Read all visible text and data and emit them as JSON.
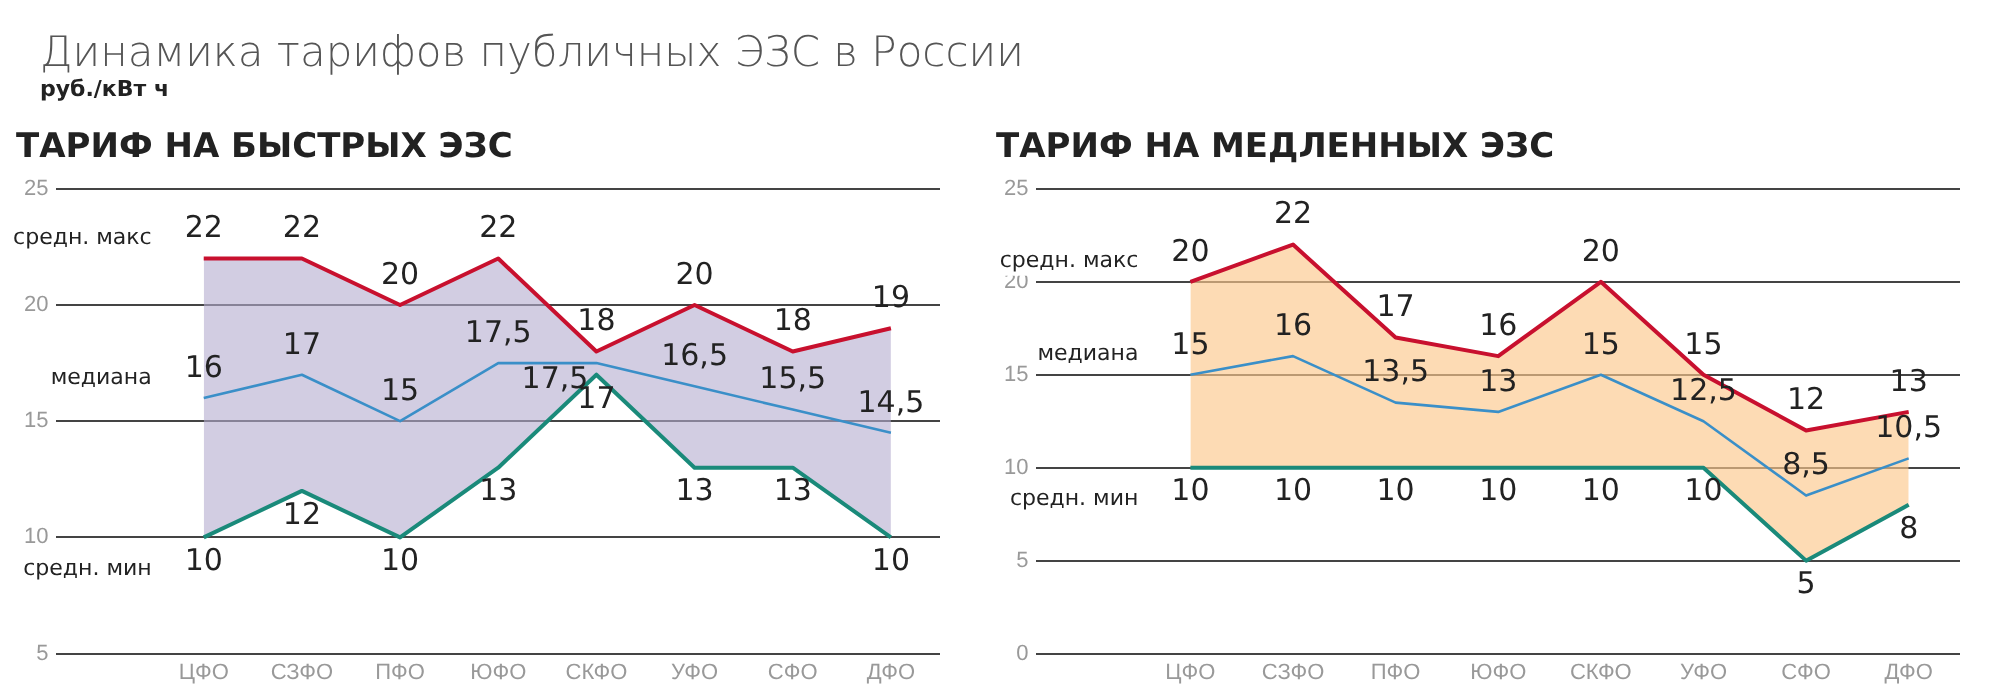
{
  "chart_data": [
    {
      "type": "line",
      "title": "ТАРИФ НА БЫСТРЫХ ЭЗС",
      "annotations": [
        "Динамика тарифов публичных ЭЗС в России"
      ],
      "ylabel": "руб./кВт ч",
      "categories": [
        "ЦФО",
        "СЗФО",
        "ПФО",
        "ЮФО",
        "СКФО",
        "УФО",
        "СФО",
        "ДФО"
      ],
      "series": [
        {
          "name": "средн. макс",
          "color": "#c8102e",
          "values": [
            22,
            22,
            20,
            22,
            18,
            20,
            18,
            19
          ],
          "value_labels": [
            "22",
            "22",
            "20",
            "22",
            "18",
            "20",
            "18",
            "19"
          ]
        },
        {
          "name": "медиана",
          "color": "#3a8fc8",
          "values": [
            16,
            17,
            15,
            17.5,
            17.5,
            16.5,
            15.5,
            14.5
          ],
          "value_labels": [
            "16",
            "17",
            "15",
            "17,5",
            "17,5",
            "16,5",
            "15,5",
            "14,5"
          ],
          "lower": [
            10,
            12,
            10,
            13,
            17,
            13,
            13,
            10
          ],
          "upper": [
            22,
            22,
            20,
            22,
            18,
            20,
            18,
            19
          ]
        },
        {
          "name": "средн. мин",
          "color": "#1a8a7a",
          "values": [
            10,
            12,
            10,
            13,
            17,
            13,
            13,
            10
          ],
          "value_labels": [
            "10",
            "12",
            "10",
            "13",
            "17",
            "13",
            "13",
            "10"
          ]
        }
      ],
      "ylim": [
        5,
        25
      ],
      "yticks": [
        5,
        10,
        15,
        20,
        25
      ],
      "grid": "y",
      "legend": false,
      "marker": "none"
    },
    {
      "type": "line",
      "title": "ТАРИФ НА МЕДЛЕННЫХ ЭЗС",
      "categories": [
        "ЦФО",
        "СЗФО",
        "ПФО",
        "ЮФО",
        "СКФО",
        "УФО",
        "СФО",
        "ДФО"
      ],
      "series": [
        {
          "name": "средн. макс",
          "color": "#c8102e",
          "values": [
            20,
            22,
            17,
            16,
            20,
            15,
            12,
            13
          ],
          "value_labels": [
            "20",
            "22",
            "17",
            "16",
            "20",
            "15",
            "12",
            "13"
          ]
        },
        {
          "name": "медиана",
          "color": "#3a8fc8",
          "values": [
            15,
            16,
            13.5,
            13,
            15,
            12.5,
            8.5,
            10.5
          ],
          "value_labels": [
            "15",
            "16",
            "13,5",
            "13",
            "15",
            "12,5",
            "8,5",
            "10,5"
          ],
          "lower": [
            10,
            10,
            10,
            10,
            10,
            10,
            5,
            8
          ],
          "upper": [
            20,
            22,
            17,
            16,
            20,
            15,
            12,
            13
          ]
        },
        {
          "name": "средн. мин",
          "color": "#1a8a7a",
          "values": [
            10,
            10,
            10,
            10,
            10,
            10,
            5,
            8
          ],
          "value_labels": [
            "10",
            "10",
            "10",
            "10",
            "10",
            "10",
            "5",
            "8"
          ]
        }
      ],
      "ylim": [
        0,
        25
      ],
      "yticks": [
        0,
        5,
        10,
        15,
        20,
        25
      ],
      "grid": "y",
      "legend": false,
      "marker": "none"
    }
  ]
}
